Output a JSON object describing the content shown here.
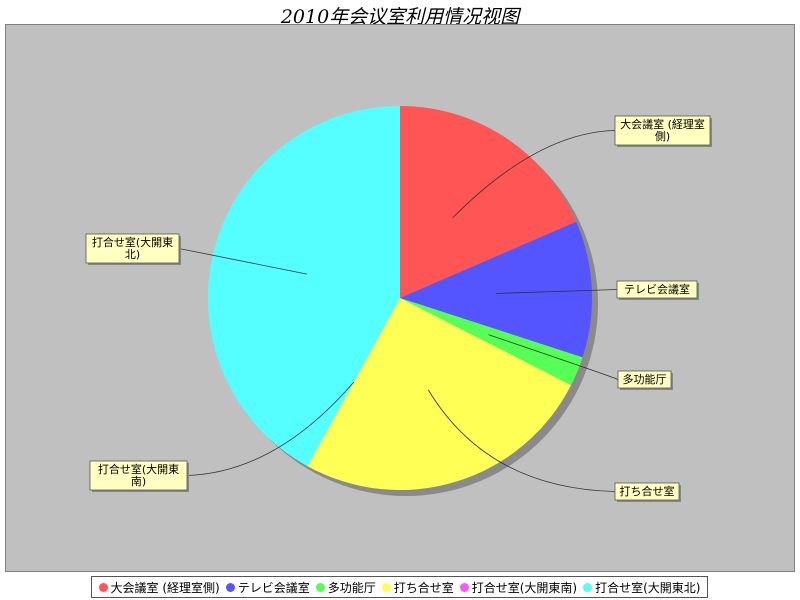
{
  "chart_data": {
    "type": "pie",
    "title": "2010年会议室利用情况视图",
    "slices": [
      {
        "name": "大会議室 (経理室側)",
        "label_text": [
          "大会議室 (経理室",
          "側)"
        ],
        "value": 18.5,
        "color": "#ff5555"
      },
      {
        "name": "テレビ会議室",
        "label_text": [
          "テレビ会議室"
        ],
        "value": 11.5,
        "color": "#5555ff"
      },
      {
        "name": "多功能厅",
        "label_text": [
          "多功能厅"
        ],
        "value": 2.5,
        "color": "#55ff55"
      },
      {
        "name": "打ち合せ室",
        "label_text": [
          "打ち合せ室"
        ],
        "value": 25.5,
        "color": "#ffff55"
      },
      {
        "name": "打合せ室(大開東南)",
        "label_text": [
          "打合せ室(大開東",
          "南)"
        ],
        "value": 0,
        "color": "#ff55ff"
      },
      {
        "name": "打合せ室(大開東北)",
        "label_text": [
          "打合せ室(大開東",
          "北)"
        ],
        "value": 42.0,
        "color": "#55ffff"
      }
    ],
    "legend_position": "bottom"
  }
}
